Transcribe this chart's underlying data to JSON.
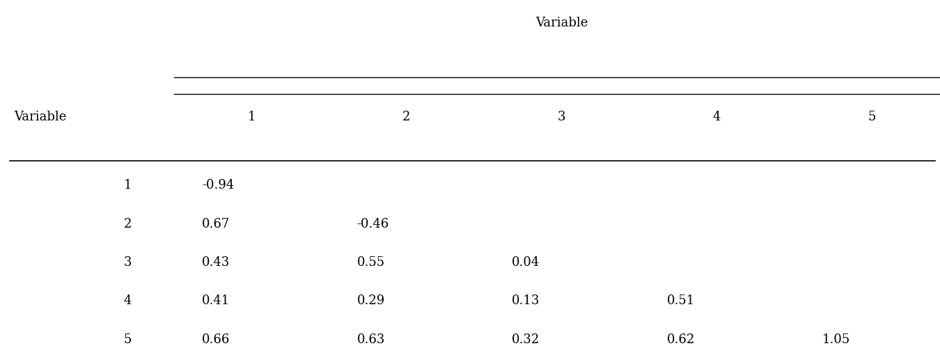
{
  "col_header_group": "Variable",
  "col_headers": [
    "1",
    "2",
    "3",
    "4",
    "5"
  ],
  "row_header_label": "Variable",
  "row_labels": [
    "1",
    "2",
    "3",
    "4",
    "5"
  ],
  "cell_data": [
    [
      "-0.94",
      "",
      "",
      "",
      ""
    ],
    [
      "0.67",
      "-0.46",
      "",
      "",
      ""
    ],
    [
      "0.43",
      "0.55",
      "0.04",
      "",
      ""
    ],
    [
      "0.41",
      "0.29",
      "0.13",
      "0.51",
      ""
    ],
    [
      "0.66",
      "0.63",
      "0.32",
      "0.62",
      "1.05"
    ]
  ],
  "background_color": "#ffffff",
  "text_color": "#000000",
  "font_size": 13
}
